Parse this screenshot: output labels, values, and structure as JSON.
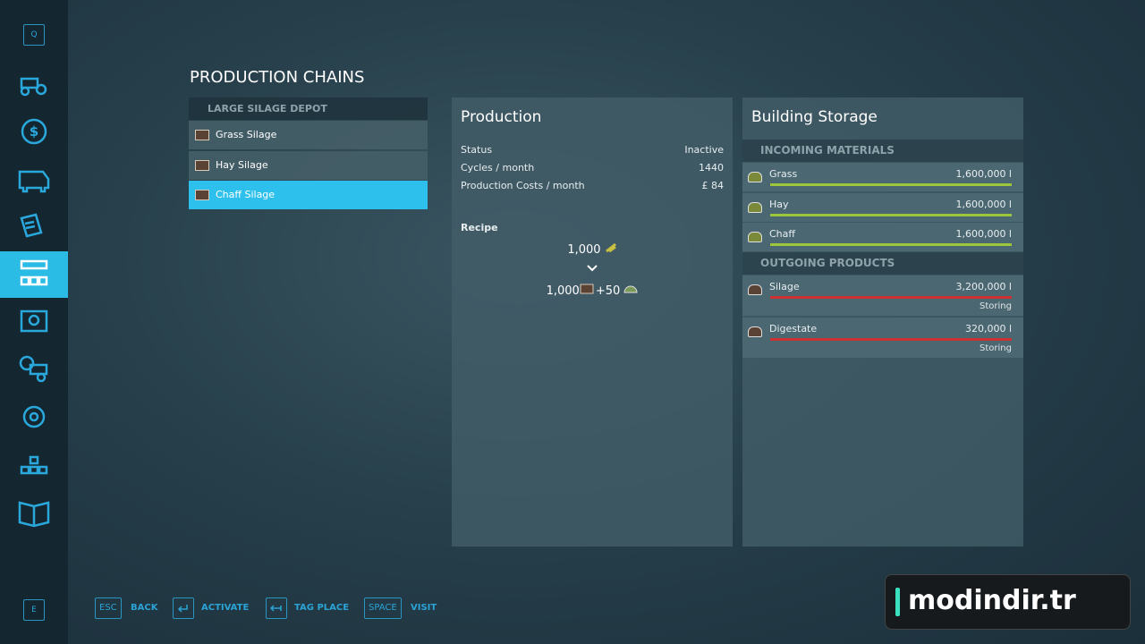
{
  "sidebar": {
    "top_key": "Q",
    "bottom_key": "E"
  },
  "header": {
    "title": "PRODUCTION CHAINS"
  },
  "chains": {
    "group": "LARGE SILAGE DEPOT",
    "items": [
      "Grass Silage",
      "Hay Silage",
      "Chaff Silage"
    ],
    "selected": 2
  },
  "production": {
    "title": "Production",
    "rows": [
      [
        "Status",
        "Inactive"
      ],
      [
        "Cycles / month",
        "1440"
      ],
      [
        "Production Costs / month",
        "£ 84"
      ]
    ],
    "recipe_label": "Recipe",
    "input": "1,000",
    "outputs": [
      "1,000",
      "+50"
    ]
  },
  "storage": {
    "title": "Building Storage",
    "incoming_header": "INCOMING MATERIALS",
    "incoming": [
      {
        "name": "Grass",
        "amount": "1,600,000 l"
      },
      {
        "name": "Hay",
        "amount": "1,600,000 l"
      },
      {
        "name": "Chaff",
        "amount": "1,600,000 l"
      }
    ],
    "outgoing_header": "OUTGOING PRODUCTS",
    "outgoing": [
      {
        "name": "Silage",
        "amount": "3,200,000 l",
        "status": "Storing"
      },
      {
        "name": "Digestate",
        "amount": "320,000 l",
        "status": "Storing"
      }
    ]
  },
  "footer": {
    "buttons": [
      {
        "key": "ESC",
        "label": "BACK"
      },
      {
        "label": "ACTIVATE"
      },
      {
        "label": "TAG PLACE"
      },
      {
        "key": "SPACE",
        "label": "VISIT"
      }
    ]
  },
  "watermark": "modindir.tr"
}
